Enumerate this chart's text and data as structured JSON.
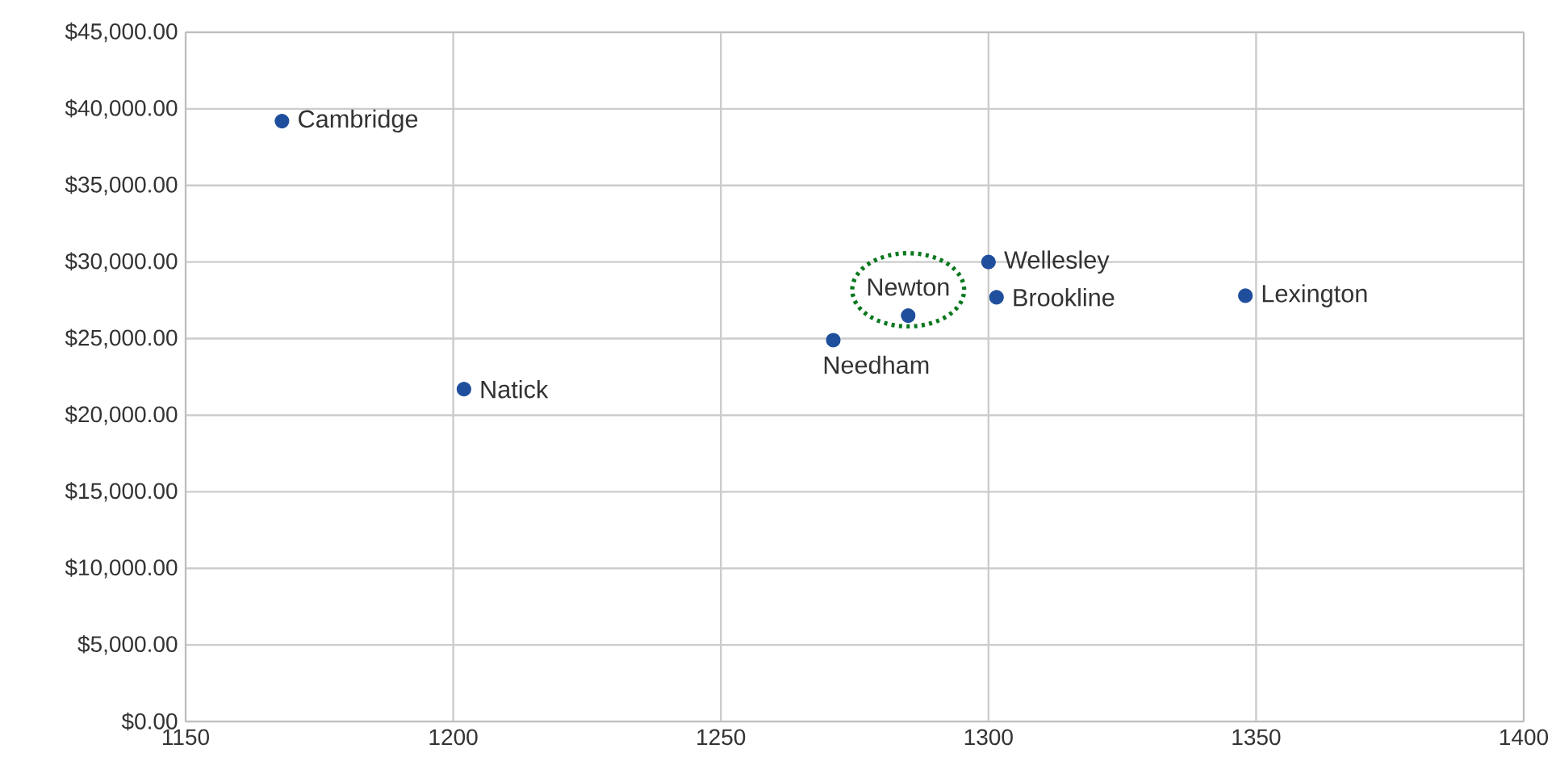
{
  "chart_data": {
    "type": "scatter",
    "x": [
      1168,
      1202,
      1271,
      1285,
      1300,
      1301.5,
      1348
    ],
    "series": [
      {
        "color": "#1f4e9c",
        "values": [
          39200,
          21700,
          24900,
          26500,
          30000,
          27700,
          27800
        ]
      }
    ],
    "xlim": [
      1150,
      1400
    ],
    "xticks": [
      1150,
      1200,
      1250,
      1300,
      1350,
      1400
    ],
    "ylim": [
      0,
      45000
    ],
    "yticks": [
      {
        "value": 0,
        "label": "$0.00"
      },
      {
        "value": 5000,
        "label": "$5,000.00"
      },
      {
        "value": 10000,
        "label": "$10,000.00"
      },
      {
        "value": 15000,
        "label": "$15,000.00"
      },
      {
        "value": 20000,
        "label": "$20,000.00"
      },
      {
        "value": 25000,
        "label": "$25,000.00"
      },
      {
        "value": 30000,
        "label": "$30,000.00"
      },
      {
        "value": 35000,
        "label": "$35,000.00"
      },
      {
        "value": 40000,
        "label": "$40,000.00"
      },
      {
        "value": 45000,
        "label": "$45,000.00"
      }
    ],
    "grid": true,
    "annotations": [
      {
        "text": "Cambridge",
        "x": 1168,
        "y": 39200
      },
      {
        "text": "Natick",
        "x": 1202,
        "y": 21700
      },
      {
        "text": "Needham",
        "x": 1271,
        "y": 24900
      },
      {
        "text": "Newton",
        "x": 1285,
        "y": 26500
      },
      {
        "text": "Wellesley",
        "x": 1300,
        "y": 30000
      },
      {
        "text": "Brookline",
        "x": 1301.5,
        "y": 27700
      },
      {
        "text": "Lexington",
        "x": 1348,
        "y": 27800
      }
    ]
  }
}
